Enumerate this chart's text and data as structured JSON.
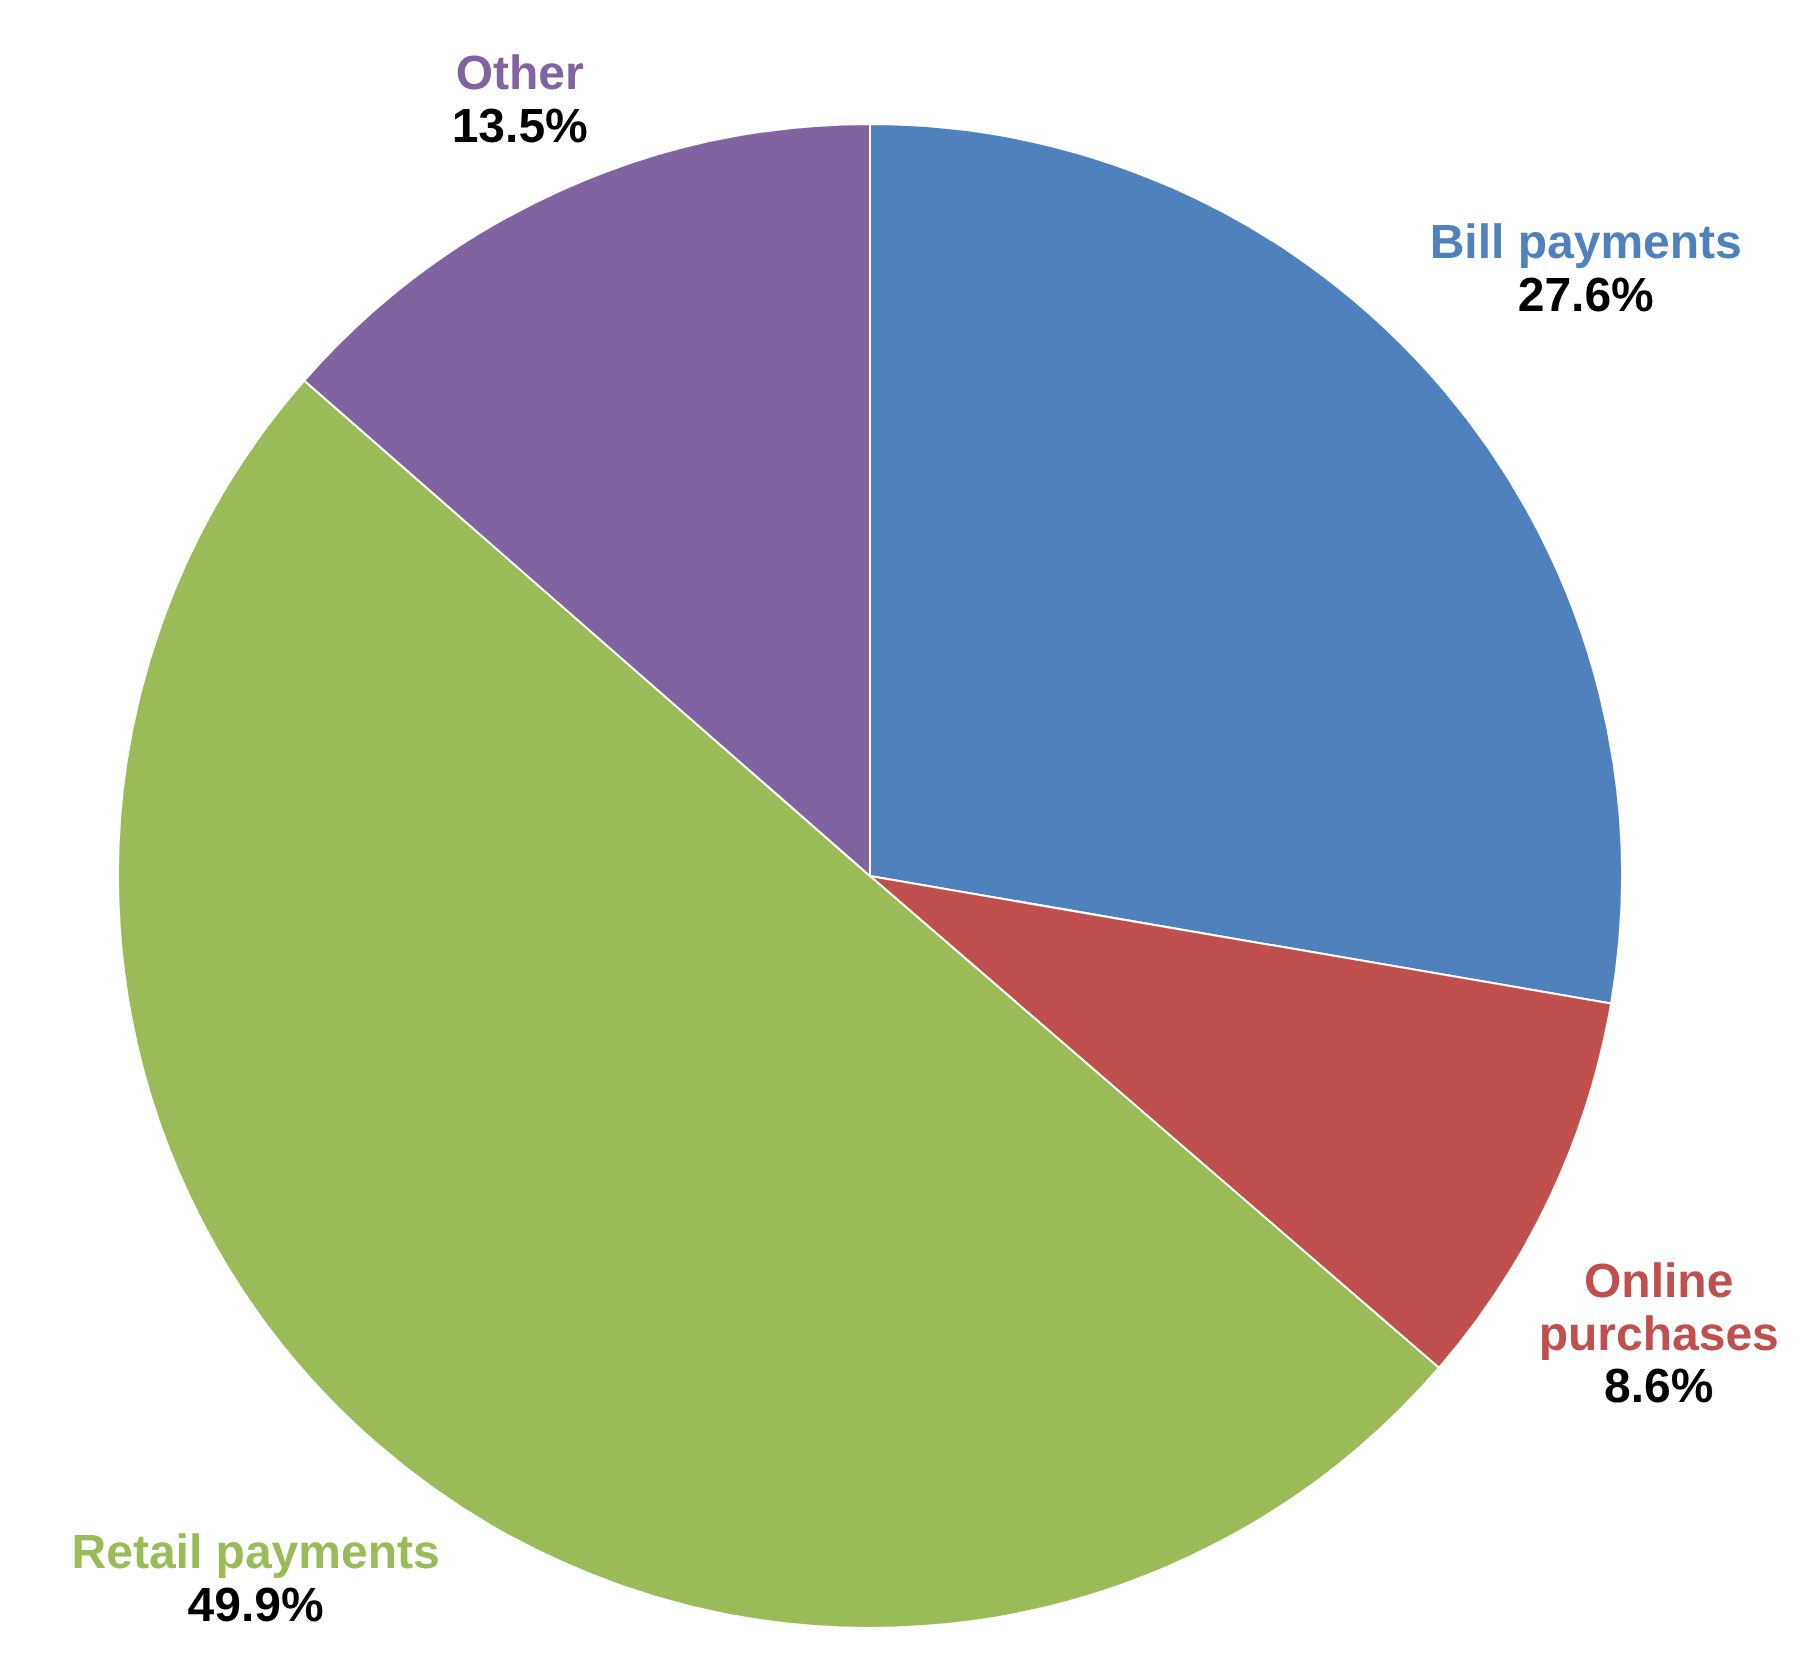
{
  "chart_data": {
    "type": "pie",
    "categories": [
      "Bill payments",
      "Online purchases",
      "Retail payments",
      "Other"
    ],
    "values": [
      27.6,
      8.6,
      49.9,
      13.5
    ],
    "colors": [
      "#4f81bd",
      "#c0504d",
      "#9bbb59",
      "#8064a2"
    ],
    "value_labels": [
      "27.6%",
      "8.6%",
      "49.9%",
      "13.5%"
    ]
  }
}
